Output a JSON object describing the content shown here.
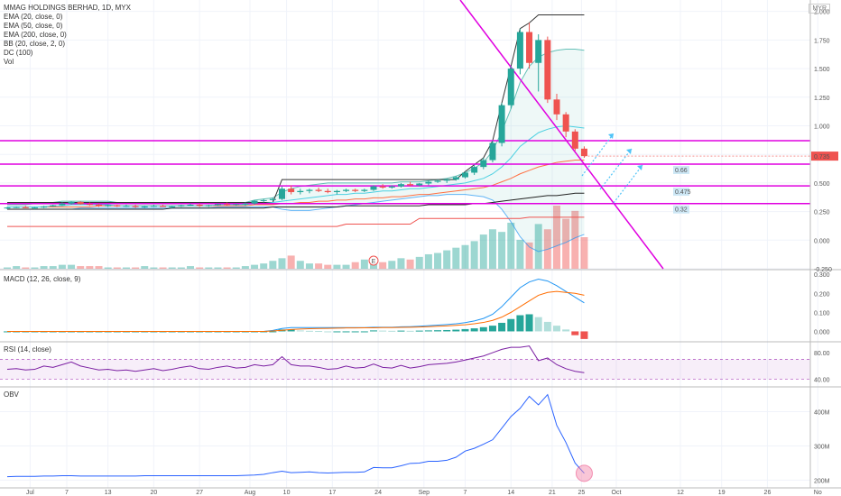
{
  "title": "MMAG HOLDINGS BERHAD, 1D, MYX",
  "currency": "MYR",
  "legend": [
    "EMA (20, close, 0)",
    "EMA (50, close, 0)",
    "EMA (200, close, 0)",
    "BB (20, close, 2, 0)",
    "DC (100)",
    "Vol"
  ],
  "macd_label": "MACD (12, 26, close, 9)",
  "rsi_label": "RSI (14, close)",
  "obv_label": "OBV",
  "earnings_marker": "E",
  "colors": {
    "up": "#26a69a",
    "down": "#ef5350",
    "magenta": "#e000e0",
    "label_bg": "#cde7f5",
    "price_tag": "#ef5350"
  },
  "chart_data": [
    {
      "type": "candlestick",
      "title": "MMAG HOLDINGS BERHAD, 1D, MYX",
      "y_ticks": [
        "2.000",
        "1.750",
        "1.500",
        "1.250",
        "1.000",
        "0.750",
        "0.500",
        "0.250",
        "0.000",
        "-0.250"
      ],
      "ylim": [
        -0.25,
        2.1
      ],
      "x_ticks": [
        "Jul",
        "7",
        "13",
        "20",
        "27",
        "Aug",
        "10",
        "17",
        "24",
        "Sep",
        "7",
        "14",
        "21",
        "25",
        "Oct",
        "12",
        "19",
        "26",
        "No"
      ],
      "last_price": "0.735",
      "horizontal_levels": [
        {
          "value": 0.87,
          "label": ""
        },
        {
          "value": 0.665,
          "label": "0.66"
        },
        {
          "value": 0.475,
          "label": "0.475"
        },
        {
          "value": 0.32,
          "label": "0.32"
        }
      ],
      "candles": [
        [
          0.28,
          0.29,
          0.27,
          0.285
        ],
        [
          0.285,
          0.295,
          0.28,
          0.29
        ],
        [
          0.29,
          0.3,
          0.28,
          0.28
        ],
        [
          0.28,
          0.29,
          0.27,
          0.285
        ],
        [
          0.285,
          0.3,
          0.28,
          0.295
        ],
        [
          0.295,
          0.31,
          0.29,
          0.305
        ],
        [
          0.305,
          0.33,
          0.3,
          0.32
        ],
        [
          0.32,
          0.34,
          0.31,
          0.335
        ],
        [
          0.335,
          0.34,
          0.31,
          0.315
        ],
        [
          0.315,
          0.33,
          0.3,
          0.31
        ],
        [
          0.31,
          0.32,
          0.29,
          0.3
        ],
        [
          0.3,
          0.31,
          0.29,
          0.305
        ],
        [
          0.305,
          0.31,
          0.29,
          0.295
        ],
        [
          0.295,
          0.31,
          0.29,
          0.3
        ],
        [
          0.3,
          0.31,
          0.28,
          0.29
        ],
        [
          0.29,
          0.3,
          0.28,
          0.295
        ],
        [
          0.295,
          0.31,
          0.29,
          0.3
        ],
        [
          0.3,
          0.31,
          0.29,
          0.29
        ],
        [
          0.29,
          0.3,
          0.28,
          0.295
        ],
        [
          0.295,
          0.31,
          0.29,
          0.305
        ],
        [
          0.305,
          0.32,
          0.3,
          0.31
        ],
        [
          0.31,
          0.32,
          0.29,
          0.3
        ],
        [
          0.3,
          0.31,
          0.29,
          0.305
        ],
        [
          0.305,
          0.32,
          0.3,
          0.315
        ],
        [
          0.315,
          0.33,
          0.3,
          0.31
        ],
        [
          0.31,
          0.32,
          0.3,
          0.315
        ],
        [
          0.315,
          0.33,
          0.3,
          0.32
        ],
        [
          0.32,
          0.35,
          0.31,
          0.345
        ],
        [
          0.345,
          0.36,
          0.33,
          0.35
        ],
        [
          0.35,
          0.37,
          0.34,
          0.36
        ],
        [
          0.36,
          0.47,
          0.35,
          0.45
        ],
        [
          0.45,
          0.48,
          0.4,
          0.42
        ],
        [
          0.42,
          0.45,
          0.4,
          0.43
        ],
        [
          0.43,
          0.45,
          0.41,
          0.44
        ],
        [
          0.44,
          0.46,
          0.42,
          0.43
        ],
        [
          0.43,
          0.45,
          0.41,
          0.42
        ],
        [
          0.42,
          0.44,
          0.4,
          0.43
        ],
        [
          0.43,
          0.45,
          0.42,
          0.44
        ],
        [
          0.44,
          0.45,
          0.42,
          0.43
        ],
        [
          0.43,
          0.45,
          0.42,
          0.44
        ],
        [
          0.44,
          0.48,
          0.43,
          0.47
        ],
        [
          0.47,
          0.49,
          0.45,
          0.46
        ],
        [
          0.46,
          0.48,
          0.45,
          0.47
        ],
        [
          0.47,
          0.5,
          0.46,
          0.49
        ],
        [
          0.49,
          0.51,
          0.47,
          0.48
        ],
        [
          0.48,
          0.5,
          0.47,
          0.495
        ],
        [
          0.495,
          0.52,
          0.48,
          0.51
        ],
        [
          0.51,
          0.53,
          0.5,
          0.52
        ],
        [
          0.52,
          0.54,
          0.5,
          0.53
        ],
        [
          0.53,
          0.56,
          0.52,
          0.55
        ],
        [
          0.55,
          0.6,
          0.54,
          0.59
        ],
        [
          0.59,
          0.66,
          0.57,
          0.64
        ],
        [
          0.64,
          0.72,
          0.62,
          0.7
        ],
        [
          0.7,
          0.87,
          0.68,
          0.85
        ],
        [
          0.85,
          1.2,
          0.82,
          1.18
        ],
        [
          1.18,
          1.52,
          1.15,
          1.5
        ],
        [
          1.5,
          1.85,
          1.45,
          1.82
        ],
        [
          1.82,
          1.9,
          1.5,
          1.55
        ],
        [
          1.55,
          1.8,
          1.3,
          1.75
        ],
        [
          1.75,
          1.78,
          1.2,
          1.23
        ],
        [
          1.23,
          1.28,
          1.05,
          1.1
        ],
        [
          1.1,
          1.12,
          0.9,
          0.95
        ],
        [
          0.95,
          0.97,
          0.78,
          0.8
        ],
        [
          0.8,
          0.82,
          0.72,
          0.735
        ]
      ],
      "ema20": [
        0.29,
        0.29,
        0.29,
        0.29,
        0.29,
        0.3,
        0.3,
        0.31,
        0.31,
        0.31,
        0.31,
        0.31,
        0.3,
        0.3,
        0.3,
        0.3,
        0.3,
        0.3,
        0.3,
        0.3,
        0.3,
        0.3,
        0.3,
        0.31,
        0.31,
        0.31,
        0.31,
        0.32,
        0.32,
        0.33,
        0.34,
        0.35,
        0.36,
        0.37,
        0.38,
        0.39,
        0.4,
        0.4,
        0.41,
        0.41,
        0.42,
        0.43,
        0.43,
        0.44,
        0.45,
        0.45,
        0.46,
        0.47,
        0.48,
        0.49,
        0.5,
        0.52,
        0.54,
        0.58,
        0.64,
        0.72,
        0.82,
        0.88,
        0.94,
        0.97,
        0.99,
        1.0,
        0.99,
        0.98
      ],
      "ema50": [
        0.29,
        0.29,
        0.29,
        0.29,
        0.29,
        0.29,
        0.29,
        0.29,
        0.29,
        0.29,
        0.3,
        0.3,
        0.3,
        0.3,
        0.3,
        0.3,
        0.3,
        0.3,
        0.3,
        0.3,
        0.3,
        0.3,
        0.3,
        0.3,
        0.3,
        0.3,
        0.3,
        0.31,
        0.31,
        0.31,
        0.32,
        0.32,
        0.33,
        0.33,
        0.34,
        0.34,
        0.35,
        0.35,
        0.36,
        0.36,
        0.37,
        0.37,
        0.38,
        0.38,
        0.39,
        0.4,
        0.4,
        0.41,
        0.42,
        0.43,
        0.44,
        0.45,
        0.46,
        0.48,
        0.51,
        0.54,
        0.58,
        0.61,
        0.64,
        0.66,
        0.68,
        0.69,
        0.7,
        0.7
      ],
      "ema200": [
        0.27,
        0.27,
        0.27,
        0.27,
        0.27,
        0.27,
        0.27,
        0.27,
        0.27,
        0.27,
        0.27,
        0.27,
        0.27,
        0.27,
        0.27,
        0.27,
        0.27,
        0.27,
        0.28,
        0.28,
        0.28,
        0.28,
        0.28,
        0.28,
        0.28,
        0.28,
        0.28,
        0.28,
        0.28,
        0.29,
        0.29,
        0.29,
        0.29,
        0.29,
        0.29,
        0.29,
        0.29,
        0.3,
        0.3,
        0.3,
        0.3,
        0.3,
        0.3,
        0.3,
        0.3,
        0.3,
        0.31,
        0.31,
        0.31,
        0.31,
        0.31,
        0.32,
        0.32,
        0.33,
        0.34,
        0.35,
        0.36,
        0.37,
        0.38,
        0.39,
        0.39,
        0.4,
        0.41,
        0.41
      ],
      "bb_upper": [
        0.31,
        0.31,
        0.31,
        0.32,
        0.32,
        0.33,
        0.34,
        0.34,
        0.34,
        0.34,
        0.34,
        0.34,
        0.33,
        0.33,
        0.33,
        0.32,
        0.32,
        0.32,
        0.32,
        0.32,
        0.32,
        0.32,
        0.32,
        0.33,
        0.33,
        0.33,
        0.33,
        0.35,
        0.36,
        0.37,
        0.42,
        0.45,
        0.47,
        0.48,
        0.49,
        0.5,
        0.5,
        0.5,
        0.5,
        0.5,
        0.5,
        0.5,
        0.5,
        0.51,
        0.51,
        0.51,
        0.52,
        0.53,
        0.54,
        0.56,
        0.59,
        0.63,
        0.68,
        0.78,
        0.95,
        1.15,
        1.38,
        1.52,
        1.6,
        1.64,
        1.66,
        1.67,
        1.67,
        1.66
      ],
      "bb_lower": [
        0.27,
        0.27,
        0.27,
        0.27,
        0.27,
        0.27,
        0.27,
        0.27,
        0.28,
        0.28,
        0.28,
        0.28,
        0.28,
        0.28,
        0.28,
        0.28,
        0.28,
        0.28,
        0.28,
        0.28,
        0.28,
        0.28,
        0.28,
        0.29,
        0.29,
        0.29,
        0.29,
        0.29,
        0.29,
        0.29,
        0.27,
        0.26,
        0.26,
        0.26,
        0.27,
        0.28,
        0.29,
        0.3,
        0.31,
        0.32,
        0.33,
        0.34,
        0.35,
        0.36,
        0.37,
        0.38,
        0.39,
        0.39,
        0.4,
        0.4,
        0.4,
        0.39,
        0.38,
        0.35,
        0.27,
        0.16,
        0.03,
        -0.06,
        -0.1,
        -0.08,
        -0.05,
        -0.02,
        0.02,
        0.05
      ],
      "dc_upper": [
        0.33,
        0.33,
        0.33,
        0.33,
        0.33,
        0.33,
        0.33,
        0.33,
        0.33,
        0.33,
        0.33,
        0.33,
        0.33,
        0.33,
        0.33,
        0.33,
        0.33,
        0.33,
        0.33,
        0.33,
        0.33,
        0.33,
        0.33,
        0.33,
        0.33,
        0.33,
        0.33,
        0.33,
        0.33,
        0.33,
        0.53,
        0.53,
        0.53,
        0.53,
        0.53,
        0.53,
        0.53,
        0.53,
        0.53,
        0.53,
        0.53,
        0.53,
        0.53,
        0.53,
        0.53,
        0.53,
        0.53,
        0.53,
        0.53,
        0.53,
        0.6,
        0.66,
        0.72,
        0.87,
        1.2,
        1.52,
        1.85,
        1.9,
        1.97,
        1.97,
        1.97,
        1.97,
        1.97,
        1.97
      ],
      "dc_lower": [
        0.12,
        0.12,
        0.12,
        0.12,
        0.12,
        0.12,
        0.12,
        0.12,
        0.12,
        0.12,
        0.12,
        0.12,
        0.12,
        0.12,
        0.12,
        0.12,
        0.12,
        0.12,
        0.12,
        0.12,
        0.12,
        0.12,
        0.12,
        0.12,
        0.12,
        0.12,
        0.12,
        0.12,
        0.12,
        0.12,
        0.12,
        0.12,
        0.12,
        0.12,
        0.12,
        0.12,
        0.12,
        0.14,
        0.14,
        0.14,
        0.14,
        0.14,
        0.14,
        0.14,
        0.14,
        0.19,
        0.19,
        0.19,
        0.19,
        0.19,
        0.19,
        0.19,
        0.19,
        0.19,
        0.19,
        0.19,
        0.19,
        0.2,
        0.2,
        0.2,
        0.2,
        0.2,
        0.2,
        0.2
      ],
      "volume": [
        1,
        2,
        1,
        1,
        2,
        2,
        3,
        3,
        2,
        2,
        2,
        1,
        1,
        1,
        1,
        2,
        1,
        1,
        1,
        1,
        2,
        1,
        1,
        1,
        1,
        1,
        2,
        3,
        4,
        6,
        8,
        10,
        6,
        4,
        4,
        3,
        3,
        3,
        5,
        7,
        6,
        5,
        6,
        8,
        7,
        9,
        11,
        12,
        14,
        16,
        18,
        21,
        26,
        30,
        28,
        35,
        22,
        20,
        34,
        30,
        48,
        38,
        44,
        24
      ]
    },
    {
      "type": "bar",
      "title": "MACD (12, 26, close, 9)",
      "y_ticks": [
        "0.300",
        "0.200",
        "0.100",
        "0.000"
      ],
      "ylim": [
        -0.05,
        0.32
      ],
      "histogram": [
        0,
        0,
        0,
        0,
        0,
        0,
        0,
        0,
        0,
        0,
        0,
        0,
        0,
        0,
        0,
        0,
        0,
        0,
        0,
        0,
        0,
        0,
        0,
        0,
        0,
        0,
        0,
        0,
        0,
        0,
        0.01,
        0.01,
        0.005,
        0.003,
        0.002,
        0,
        0,
        0,
        0,
        0,
        0.005,
        0.004,
        0.003,
        0.004,
        0.003,
        0.004,
        0.005,
        0.006,
        0.007,
        0.009,
        0.012,
        0.016,
        0.022,
        0.03,
        0.045,
        0.065,
        0.085,
        0.09,
        0.075,
        0.05,
        0.03,
        0.01,
        -0.02,
        -0.04
      ],
      "macd": [
        0,
        0,
        0,
        0,
        0,
        0,
        0,
        0,
        0,
        0,
        0,
        0,
        0,
        0,
        0,
        0,
        0,
        0,
        0,
        0,
        0,
        0,
        0,
        0,
        0,
        0,
        0,
        0,
        0,
        0.005,
        0.015,
        0.02,
        0.02,
        0.02,
        0.02,
        0.02,
        0.02,
        0.02,
        0.02,
        0.02,
        0.022,
        0.022,
        0.022,
        0.024,
        0.025,
        0.027,
        0.03,
        0.033,
        0.036,
        0.04,
        0.046,
        0.055,
        0.068,
        0.09,
        0.13,
        0.18,
        0.23,
        0.26,
        0.275,
        0.265,
        0.24,
        0.21,
        0.18,
        0.15
      ],
      "signal": [
        0,
        0,
        0,
        0,
        0,
        0,
        0,
        0,
        0,
        0,
        0,
        0,
        0,
        0,
        0,
        0,
        0,
        0,
        0,
        0,
        0,
        0,
        0,
        0,
        0,
        0,
        0,
        0,
        0,
        0.002,
        0.006,
        0.01,
        0.012,
        0.014,
        0.015,
        0.016,
        0.017,
        0.018,
        0.018,
        0.019,
        0.019,
        0.02,
        0.02,
        0.021,
        0.022,
        0.023,
        0.025,
        0.027,
        0.029,
        0.032,
        0.035,
        0.04,
        0.047,
        0.058,
        0.075,
        0.1,
        0.13,
        0.16,
        0.19,
        0.205,
        0.21,
        0.205,
        0.2,
        0.19
      ]
    },
    {
      "type": "line",
      "title": "RSI (14, close)",
      "y_ticks": [
        "80.00",
        "40.00"
      ],
      "ylim": [
        30,
        95
      ],
      "rsi": [
        55,
        56,
        54,
        55,
        60,
        58,
        62,
        66,
        60,
        57,
        54,
        55,
        53,
        54,
        52,
        54,
        56,
        53,
        55,
        58,
        60,
        56,
        55,
        58,
        60,
        57,
        58,
        62,
        60,
        62,
        74,
        62,
        60,
        60,
        58,
        55,
        56,
        60,
        57,
        58,
        63,
        58,
        57,
        61,
        57,
        59,
        62,
        63,
        64,
        66,
        69,
        72,
        75,
        80,
        85,
        88,
        88,
        90,
        68,
        72,
        62,
        56,
        52,
        50
      ]
    },
    {
      "type": "line",
      "title": "OBV",
      "y_ticks": [
        "400M",
        "300M",
        "200M"
      ],
      "ylim": [
        180,
        470
      ],
      "obv": [
        210,
        211,
        211,
        211,
        212,
        212,
        213,
        213,
        212,
        212,
        212,
        212,
        212,
        212,
        212,
        213,
        213,
        213,
        213,
        213,
        213,
        213,
        213,
        213,
        213,
        213,
        214,
        215,
        217,
        222,
        226,
        222,
        223,
        224,
        222,
        221,
        222,
        223,
        223,
        224,
        237,
        236,
        236,
        242,
        249,
        250,
        255,
        255,
        258,
        267,
        285,
        293,
        305,
        318,
        352,
        386,
        410,
        445,
        420,
        450,
        360,
        310,
        250,
        220
      ]
    }
  ]
}
